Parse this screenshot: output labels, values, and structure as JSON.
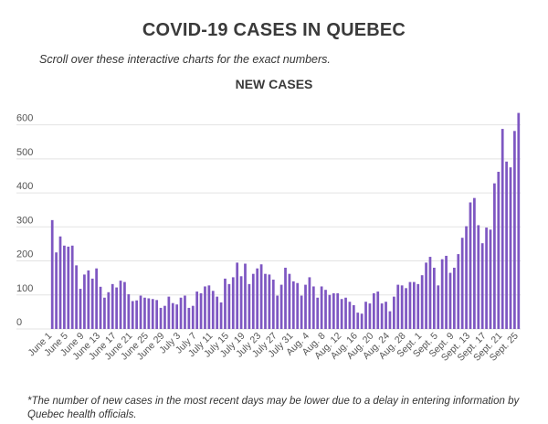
{
  "header": {
    "title": "COVID-19 CASES IN QUEBEC",
    "subtitle": "Scroll over these interactive charts for the exact numbers."
  },
  "footnote": "*The number of new cases in the most recent days may be lower due to a delay in entering information by Quebec health officials.",
  "colors": {
    "bar": "#7e57c2",
    "grid": "#e3e3e3",
    "text": "#555555"
  },
  "chart_data": {
    "type": "bar",
    "title": "NEW CASES",
    "xlabel": "",
    "ylabel": "",
    "ylim": [
      0,
      650
    ],
    "yticks": [
      0,
      100,
      200,
      300,
      400,
      500,
      600
    ],
    "grid": true,
    "x_tick_labels": [
      "June 1",
      "June 5",
      "June 9",
      "June 13",
      "June 17",
      "June 21",
      "June 25",
      "June 29",
      "July 3",
      "July 7",
      "July 11",
      "July 15",
      "July 19",
      "July 23",
      "July 27",
      "July 31",
      "Aug. 4",
      "Aug. 8",
      "Aug. 12",
      "Aug. 16",
      "Aug. 20",
      "Aug. 24",
      "Aug. 28",
      "Sept. 1",
      "Sept. 5",
      "Sept. 9",
      "Sept. 13",
      "Sept. 17",
      "Sept. 21",
      "Sept. 25"
    ],
    "categories": [
      "June 1",
      "June 2",
      "June 3",
      "June 4",
      "June 5",
      "June 6",
      "June 7",
      "June 8",
      "June 9",
      "June 10",
      "June 11",
      "June 12",
      "June 13",
      "June 14",
      "June 15",
      "June 16",
      "June 17",
      "June 18",
      "June 19",
      "June 20",
      "June 21",
      "June 22",
      "June 23",
      "June 24",
      "June 25",
      "June 26",
      "June 27",
      "June 28",
      "June 29",
      "June 30",
      "July 1",
      "July 2",
      "July 3",
      "July 4",
      "July 5",
      "July 6",
      "July 7",
      "July 8",
      "July 9",
      "July 10",
      "July 11",
      "July 12",
      "July 13",
      "July 14",
      "July 15",
      "July 16",
      "July 17",
      "July 18",
      "July 19",
      "July 20",
      "July 21",
      "July 22",
      "July 23",
      "July 24",
      "July 25",
      "July 26",
      "July 27",
      "July 28",
      "July 29",
      "July 30",
      "July 31",
      "Aug. 1",
      "Aug. 2",
      "Aug. 3",
      "Aug. 4",
      "Aug. 5",
      "Aug. 6",
      "Aug. 7",
      "Aug. 8",
      "Aug. 9",
      "Aug. 10",
      "Aug. 11",
      "Aug. 12",
      "Aug. 13",
      "Aug. 14",
      "Aug. 15",
      "Aug. 16",
      "Aug. 17",
      "Aug. 18",
      "Aug. 19",
      "Aug. 20",
      "Aug. 21",
      "Aug. 22",
      "Aug. 23",
      "Aug. 24",
      "Aug. 25",
      "Aug. 26",
      "Aug. 27",
      "Aug. 28",
      "Aug. 29",
      "Aug. 30",
      "Aug. 31",
      "Sept. 1",
      "Sept. 2",
      "Sept. 3",
      "Sept. 4",
      "Sept. 5",
      "Sept. 6",
      "Sept. 7",
      "Sept. 8",
      "Sept. 9",
      "Sept. 10",
      "Sept. 11",
      "Sept. 12",
      "Sept. 13",
      "Sept. 14",
      "Sept. 15",
      "Sept. 16",
      "Sept. 17",
      "Sept. 18",
      "Sept. 19",
      "Sept. 20",
      "Sept. 21",
      "Sept. 22",
      "Sept. 23",
      "Sept. 24",
      "Sept. 25"
    ],
    "values": [
      320,
      225,
      272,
      245,
      242,
      245,
      187,
      118,
      160,
      172,
      148,
      178,
      124,
      92,
      108,
      132,
      122,
      142,
      138,
      102,
      82,
      84,
      98,
      92,
      90,
      88,
      85,
      62,
      68,
      95,
      76,
      72,
      92,
      98,
      62,
      68,
      110,
      105,
      125,
      128,
      112,
      95,
      78,
      148,
      132,
      152,
      195,
      155,
      192,
      132,
      162,
      178,
      190,
      162,
      160,
      145,
      98,
      130,
      180,
      162,
      140,
      135,
      98,
      130,
      152,
      125,
      92,
      125,
      115,
      100,
      105,
      105,
      88,
      92,
      80,
      70,
      48,
      45,
      80,
      75,
      105,
      110,
      75,
      80,
      52,
      95,
      130,
      128,
      120,
      138,
      138,
      132,
      158,
      195,
      212,
      180,
      128,
      205,
      215,
      165,
      180,
      220,
      268,
      302,
      372,
      385,
      305,
      252,
      298,
      292,
      428,
      462,
      588,
      492,
      475,
      582,
      635
    ]
  }
}
